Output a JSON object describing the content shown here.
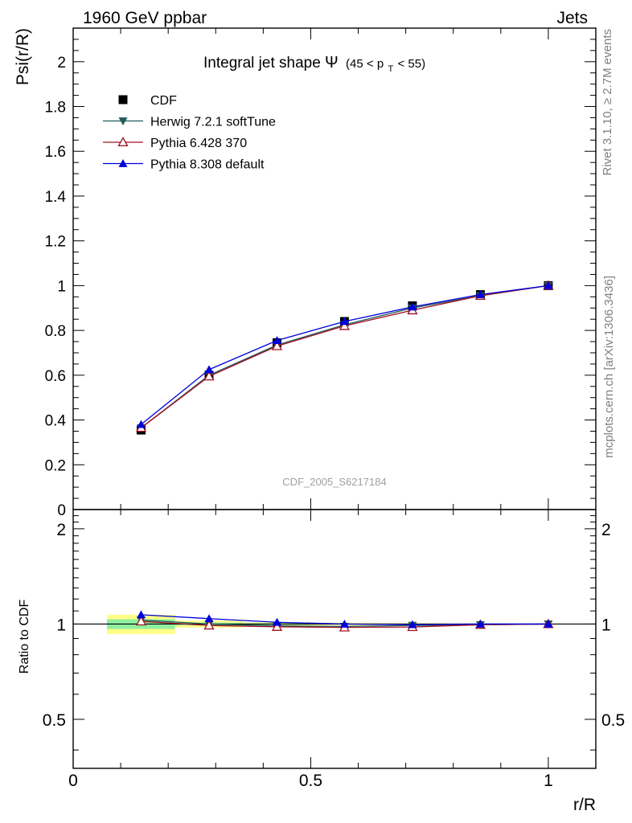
{
  "header": {
    "left_label": "1960 GeV ppbar",
    "right_label": "Jets"
  },
  "side_labels": {
    "rivet": "Rivet 3.1.10, ≥ 2.7M events",
    "mcplots": "mcplots.cern.ch [arXiv:1306.3436]"
  },
  "watermark": "CDF_2005_S6217184",
  "colors": {
    "cdf": "#000000",
    "herwig": "#1f5c5c",
    "pythia6": "#a01020",
    "pythia8": "#0000dd",
    "band_inner": "#8ef0a0",
    "band_outer": "#ffff88"
  },
  "chart_data": [
    {
      "type": "line",
      "panel": "main",
      "title": "Integral jet shape",
      "title_symbol": "Ψ",
      "title_range": "(45 < p",
      "title_range_sub": "T",
      "title_range_end": " < 55)",
      "xlabel": "r/R",
      "ylabel": "Psi(r/R)",
      "xlim": [
        0,
        1.1
      ],
      "ylim": [
        0,
        2.15
      ],
      "yticks": [
        0,
        0.2,
        0.4,
        0.6,
        0.8,
        1,
        1.2,
        1.4,
        1.6,
        1.8,
        2
      ],
      "ytick_labels": [
        "0",
        "0.2",
        "0.4",
        "0.6",
        "0.8",
        "1",
        "1.2",
        "1.4",
        "1.6",
        "1.8",
        "2"
      ],
      "legend_position": "top-left",
      "x": [
        0.143,
        0.286,
        0.429,
        0.571,
        0.714,
        0.857,
        1.0
      ],
      "series": [
        {
          "name": "CDF",
          "marker": "square",
          "values": [
            0.355,
            0.6,
            0.745,
            0.84,
            0.91,
            0.96,
            1.0
          ]
        },
        {
          "name": "Herwig 7.2.1 softTune",
          "marker": "triangle-down",
          "values": [
            0.365,
            0.6,
            0.735,
            0.825,
            0.9,
            0.955,
            1.0
          ]
        },
        {
          "name": "Pythia 6.428 370",
          "marker": "triangle-up-open",
          "values": [
            0.365,
            0.595,
            0.73,
            0.82,
            0.89,
            0.955,
            1.0
          ]
        },
        {
          "name": "Pythia 8.308 default",
          "marker": "triangle-up",
          "values": [
            0.38,
            0.625,
            0.755,
            0.84,
            0.905,
            0.96,
            1.0
          ]
        }
      ]
    },
    {
      "type": "line",
      "panel": "ratio",
      "xlabel": "r/R",
      "ylabel": "Ratio to CDF",
      "xlim": [
        0,
        1.1
      ],
      "ylim": [
        0.35,
        2.3
      ],
      "log_y": true,
      "yticks": [
        0.5,
        1,
        2
      ],
      "ytick_labels": [
        "0.5",
        "1",
        "2"
      ],
      "xticks": [
        0,
        0.5,
        1
      ],
      "xtick_labels": [
        "0",
        "0.5",
        "1"
      ],
      "x": [
        0.143,
        0.286,
        0.429,
        0.571,
        0.714,
        0.857,
        1.0
      ],
      "bands": [
        {
          "x0": 0.071,
          "x1": 0.214,
          "inner": [
            0.965,
            1.035
          ],
          "outer": [
            0.93,
            1.07
          ]
        },
        {
          "x0": 0.214,
          "x1": 0.357,
          "inner": [
            0.99,
            1.01
          ],
          "outer": [
            0.975,
            1.025
          ]
        },
        {
          "x0": 0.357,
          "x1": 0.5,
          "inner": [
            0.994,
            1.006
          ],
          "outer": [
            0.988,
            1.012
          ]
        },
        {
          "x0": 0.5,
          "x1": 0.643,
          "inner": [
            0.996,
            1.004
          ],
          "outer": [
            0.99,
            1.01
          ]
        },
        {
          "x0": 0.643,
          "x1": 0.786,
          "inner": [
            0.997,
            1.003
          ],
          "outer": [
            0.993,
            1.007
          ]
        },
        {
          "x0": 0.786,
          "x1": 0.929,
          "inner": [
            0.998,
            1.002
          ],
          "outer": [
            0.996,
            1.004
          ]
        }
      ],
      "series": [
        {
          "name": "Herwig 7.2.1 softTune",
          "marker": "triangle-down",
          "values": [
            1.03,
            1.0,
            0.987,
            0.983,
            0.99,
            0.995,
            1.0
          ]
        },
        {
          "name": "Pythia 6.428 370",
          "marker": "triangle-up-open",
          "values": [
            1.02,
            0.99,
            0.98,
            0.976,
            0.979,
            0.995,
            1.0
          ]
        },
        {
          "name": "Pythia 8.308 default",
          "marker": "triangle-up",
          "values": [
            1.07,
            1.04,
            1.013,
            1.0,
            0.996,
            1.0,
            1.0
          ]
        }
      ]
    }
  ]
}
